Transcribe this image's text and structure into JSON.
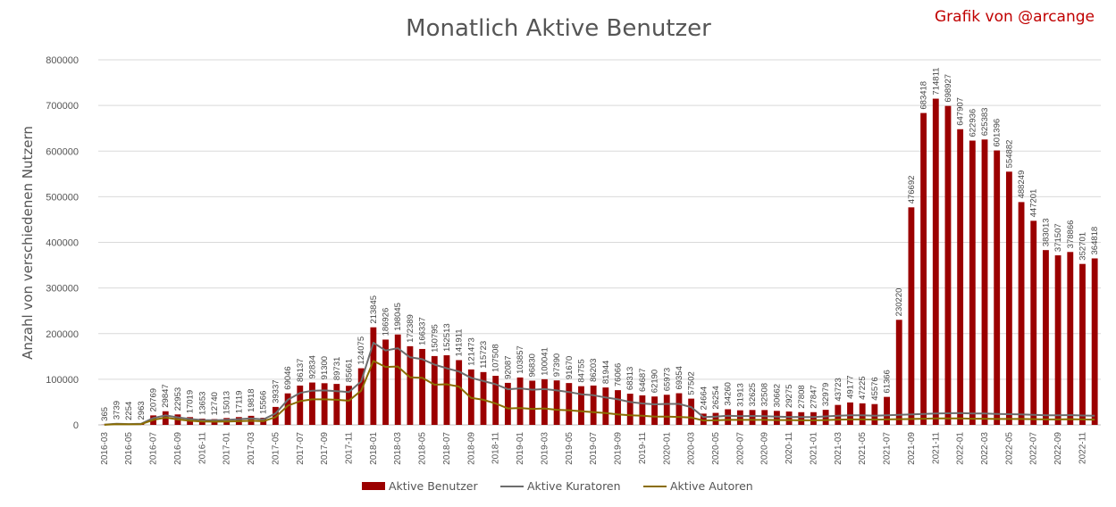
{
  "chart_data": {
    "type": "bar",
    "title": "Monatlich Aktive Benutzer",
    "credit": "Grafik von @arcange",
    "xlabel": "",
    "ylabel": "Anzahl von verschiedenen Nutzern",
    "ylim": [
      0,
      800000
    ],
    "yticks": [
      "0",
      "100000",
      "200000",
      "300000",
      "400000",
      "500000",
      "600000",
      "700000",
      "800000"
    ],
    "grid": true,
    "legend_position": "bottom",
    "colors": {
      "Aktive Benutzer": "#9b0000",
      "Aktive Kuratoren": "#6d6d6d",
      "Aktive Autoren": "#8a6d00"
    },
    "categories": [
      "2016-03",
      "2016-04",
      "2016-05",
      "2016-06",
      "2016-07",
      "2016-08",
      "2016-09",
      "2016-10",
      "2016-11",
      "2016-12",
      "2017-01",
      "2017-02",
      "2017-03",
      "2017-04",
      "2017-05",
      "2017-06",
      "2017-07",
      "2017-08",
      "2017-09",
      "2017-10",
      "2017-11",
      "2017-12",
      "2018-01",
      "2018-02",
      "2018-03",
      "2018-04",
      "2018-05",
      "2018-06",
      "2018-07",
      "2018-08",
      "2018-09",
      "2018-10",
      "2018-11",
      "2018-12",
      "2019-01",
      "2019-02",
      "2019-03",
      "2019-04",
      "2019-05",
      "2019-06",
      "2019-07",
      "2019-08",
      "2019-09",
      "2019-10",
      "2019-11",
      "2019-12",
      "2020-01",
      "2020-02",
      "2020-03",
      "2020-04",
      "2020-05",
      "2020-06",
      "2020-07",
      "2020-08",
      "2020-09",
      "2020-10",
      "2020-11",
      "2020-12",
      "2021-01",
      "2021-02",
      "2021-03",
      "2021-04",
      "2021-05",
      "2021-06",
      "2021-07",
      "2021-08",
      "2021-09",
      "2021-10",
      "2021-11",
      "2021-12",
      "2022-01",
      "2022-02",
      "2022-03",
      "2022-04",
      "2022-05",
      "2022-06",
      "2022-07",
      "2022-08",
      "2022-09",
      "2022-10",
      "2022-11",
      "2022-12"
    ],
    "xtick_labels": [
      "2016-03",
      "2016-05",
      "2016-07",
      "2016-09",
      "2016-11",
      "2017-01",
      "2017-03",
      "2017-05",
      "2017-07",
      "2017-09",
      "2017-11",
      "2018-01",
      "2018-03",
      "2018-05",
      "2018-07",
      "2018-09",
      "2018-11",
      "2019-01",
      "2019-03",
      "2019-05",
      "2019-07",
      "2019-09",
      "2019-11",
      "2020-01",
      "2020-03",
      "2020-05",
      "2020-07",
      "2020-09",
      "2020-11",
      "2021-01",
      "2021-03",
      "2021-05",
      "2021-07",
      "2021-09",
      "2021-11",
      "2022-01",
      "2022-03",
      "2022-05",
      "2022-07",
      "2022-09",
      "2022-11"
    ],
    "series": [
      {
        "name": "Aktive Benutzer",
        "type": "bar",
        "values": [
          365,
          3739,
          2254,
          2963,
          20769,
          29847,
          22953,
          17019,
          13653,
          12740,
          15013,
          17119,
          19818,
          15566,
          39337,
          69046,
          86137,
          92834,
          91300,
          89731,
          85661,
          124075,
          213845,
          186926,
          198045,
          172389,
          166337,
          150795,
          152513,
          141911,
          121473,
          115723,
          107508,
          92087,
          103857,
          96830,
          100041,
          97390,
          91670,
          84755,
          86203,
          81944,
          76066,
          68313,
          64687,
          62190,
          65973,
          69354,
          57502,
          24664,
          26254,
          34260,
          31913,
          32625,
          32508,
          30662,
          29275,
          27808,
          27847,
          32979,
          43723,
          49177,
          47225,
          45576,
          61366,
          230220,
          476692,
          683418,
          714811,
          698927,
          647907,
          622936,
          625383,
          601396,
          554882,
          488249,
          447201,
          383013,
          371507,
          378866,
          352701,
          364818
        ]
      },
      {
        "name": "Aktive Kuratoren",
        "type": "line",
        "values": [
          300,
          2500,
          1800,
          2400,
          15000,
          21000,
          16500,
          13000,
          10500,
          10000,
          11000,
          12500,
          14000,
          12000,
          25000,
          55000,
          70000,
          75000,
          75500,
          74000,
          72000,
          95000,
          180000,
          163000,
          168000,
          148000,
          144000,
          132000,
          124000,
          117000,
          103000,
          96000,
          89000,
          78000,
          80000,
          77000,
          78500,
          75500,
          72000,
          67000,
          65000,
          60000,
          56000,
          50000,
          47000,
          45000,
          46000,
          46000,
          39000,
          17000,
          18000,
          20000,
          19000,
          19500,
          19000,
          18000,
          17500,
          17000,
          17000,
          18500,
          20000,
          21000,
          21000,
          20000,
          21000,
          22000,
          23000,
          24000,
          25000,
          25500,
          26000,
          25000,
          25000,
          24000,
          23500,
          23000,
          22000,
          21000,
          21000,
          21500,
          20500,
          20000
        ]
      },
      {
        "name": "Aktive Autoren",
        "type": "line",
        "values": [
          200,
          1500,
          1100,
          1500,
          11000,
          16000,
          12000,
          9000,
          7500,
          7000,
          7500,
          8000,
          9000,
          8000,
          17000,
          42000,
          52000,
          56000,
          56000,
          55000,
          53000,
          75000,
          140000,
          127000,
          128000,
          104000,
          103000,
          88000,
          89000,
          84000,
          59000,
          55000,
          47000,
          36000,
          37000,
          35000,
          36000,
          33000,
          32000,
          30000,
          28000,
          26000,
          23000,
          21000,
          20000,
          18000,
          18000,
          17500,
          16000,
          9500,
          10000,
          11000,
          11000,
          11000,
          11000,
          10500,
          10500,
          10000,
          10000,
          10500,
          11500,
          12000,
          12000,
          11500,
          12000,
          12500,
          13000,
          13500,
          14000,
          14000,
          14000,
          13500,
          13500,
          13000,
          13000,
          13000,
          12500,
          12000,
          12000,
          12500,
          12000,
          11500
        ]
      }
    ]
  }
}
